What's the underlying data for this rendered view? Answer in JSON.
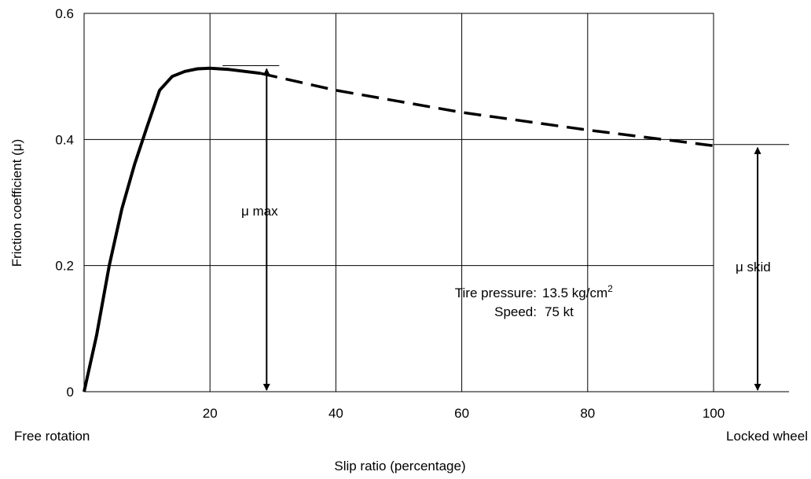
{
  "chart_data": {
    "type": "line",
    "xlabel": "Slip ratio (percentage)",
    "ylabel": "Friction coefficient (μ)",
    "xlim": [
      0,
      100
    ],
    "ylim": [
      0,
      0.6
    ],
    "x_ticks": [
      "20",
      "40",
      "60",
      "80",
      "100"
    ],
    "y_ticks": [
      "0",
      "0.2",
      "0.4",
      "0.6"
    ],
    "grid": true,
    "series": [
      {
        "style": "solid",
        "points": [
          [
            0,
            0
          ],
          [
            2,
            0.09
          ],
          [
            4,
            0.2
          ],
          [
            6,
            0.29
          ],
          [
            8,
            0.36
          ],
          [
            10,
            0.42
          ],
          [
            12,
            0.478
          ],
          [
            14,
            0.5
          ],
          [
            16,
            0.508
          ],
          [
            18,
            0.512
          ],
          [
            20,
            0.513
          ],
          [
            23,
            0.511
          ],
          [
            28,
            0.505
          ]
        ]
      },
      {
        "style": "dashed",
        "points": [
          [
            28,
            0.505
          ],
          [
            40,
            0.478
          ],
          [
            60,
            0.443
          ],
          [
            80,
            0.415
          ],
          [
            100,
            0.39
          ]
        ]
      }
    ],
    "annotations": {
      "x_start": "Free rotation",
      "x_end": "Locked wheel",
      "mu_max": {
        "label": "μ max",
        "x": 29,
        "from": 0,
        "to": 0.517
      },
      "mu_skid": {
        "label": "μ skid",
        "x": 107,
        "from": 0,
        "to": 0.392
      },
      "conditions": {
        "pressure_label": "Tire pressure:",
        "pressure_value": "13.5 kg/cm",
        "pressure_sup": "2",
        "speed_label": "Speed:",
        "speed_value": "75 kt"
      }
    }
  }
}
